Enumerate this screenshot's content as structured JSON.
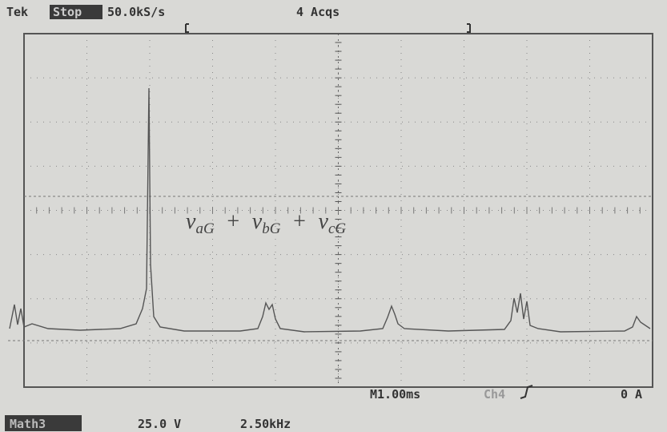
{
  "header": {
    "brand": "Tek",
    "status": "Stop",
    "sample_rate": "50.0kS/s",
    "acquisitions": "4 Acqs"
  },
  "trace_label": {
    "terms": [
      {
        "var": "v",
        "sub": "aG"
      },
      {
        "var": "v",
        "sub": "bG"
      },
      {
        "var": "v",
        "sub": "cG"
      }
    ],
    "operators": [
      "+",
      "+"
    ]
  },
  "readout": {
    "timebase": "M1.00ms",
    "trigger_source": "Ch4",
    "trigger_level": "0 A"
  },
  "footer": {
    "channel": "Math3",
    "scale": "25.0 V",
    "frequency": "2.50kHz"
  }
}
